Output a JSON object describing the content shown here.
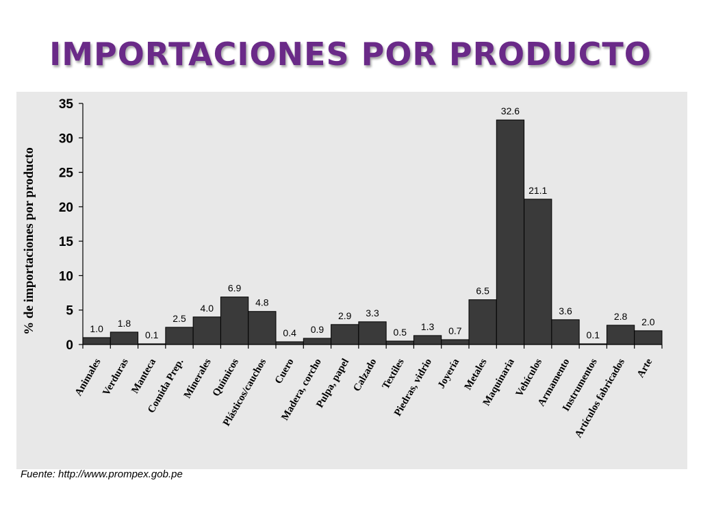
{
  "slide": {
    "title": "IMPORTACIONES POR PRODUCTO",
    "source": "Fuente: http://www.prompex.gob.pe"
  },
  "colors": {
    "title": "#6a2a88",
    "bar": "#3a3a3a",
    "panel": "#e8e8e8"
  },
  "chart_data": {
    "type": "bar",
    "title": "",
    "xlabel": "",
    "ylabel": "% de importaciones por producto",
    "ylim": [
      0,
      35
    ],
    "yticks": [
      0,
      5,
      10,
      15,
      20,
      25,
      30,
      35
    ],
    "grid": false,
    "categories": [
      "Animales",
      "Verduras",
      "Manteca",
      "Comida Prep.",
      "Minerales",
      "Químicos",
      "Plásticos/cauchos",
      "Cuero",
      "Madera, corcho",
      "Pulpa, papel",
      "Calzado",
      "Textiles",
      "Piedras, vidrio",
      "Joyería",
      "Metales",
      "Maquinaria",
      "Vehículos",
      "Armamento",
      "Instrumentos",
      "Artículos fabricados",
      "Arte"
    ],
    "values": [
      1.0,
      1.8,
      0.1,
      2.5,
      4.0,
      6.9,
      4.8,
      0.4,
      0.9,
      2.9,
      3.3,
      0.5,
      1.3,
      0.7,
      6.5,
      32.6,
      21.1,
      3.6,
      0.1,
      2.8,
      2.0
    ],
    "value_labels": [
      "1.0",
      "1.8",
      "0.1",
      "2.5",
      "4.0",
      "6.9",
      "4.8",
      "0.4",
      "0.9",
      "2.9",
      "3.3",
      "0.5",
      "1.3",
      "0.7",
      "6.5",
      "32.6",
      "21.1",
      "3.6",
      "0.1",
      "2.8",
      "2.0"
    ]
  }
}
